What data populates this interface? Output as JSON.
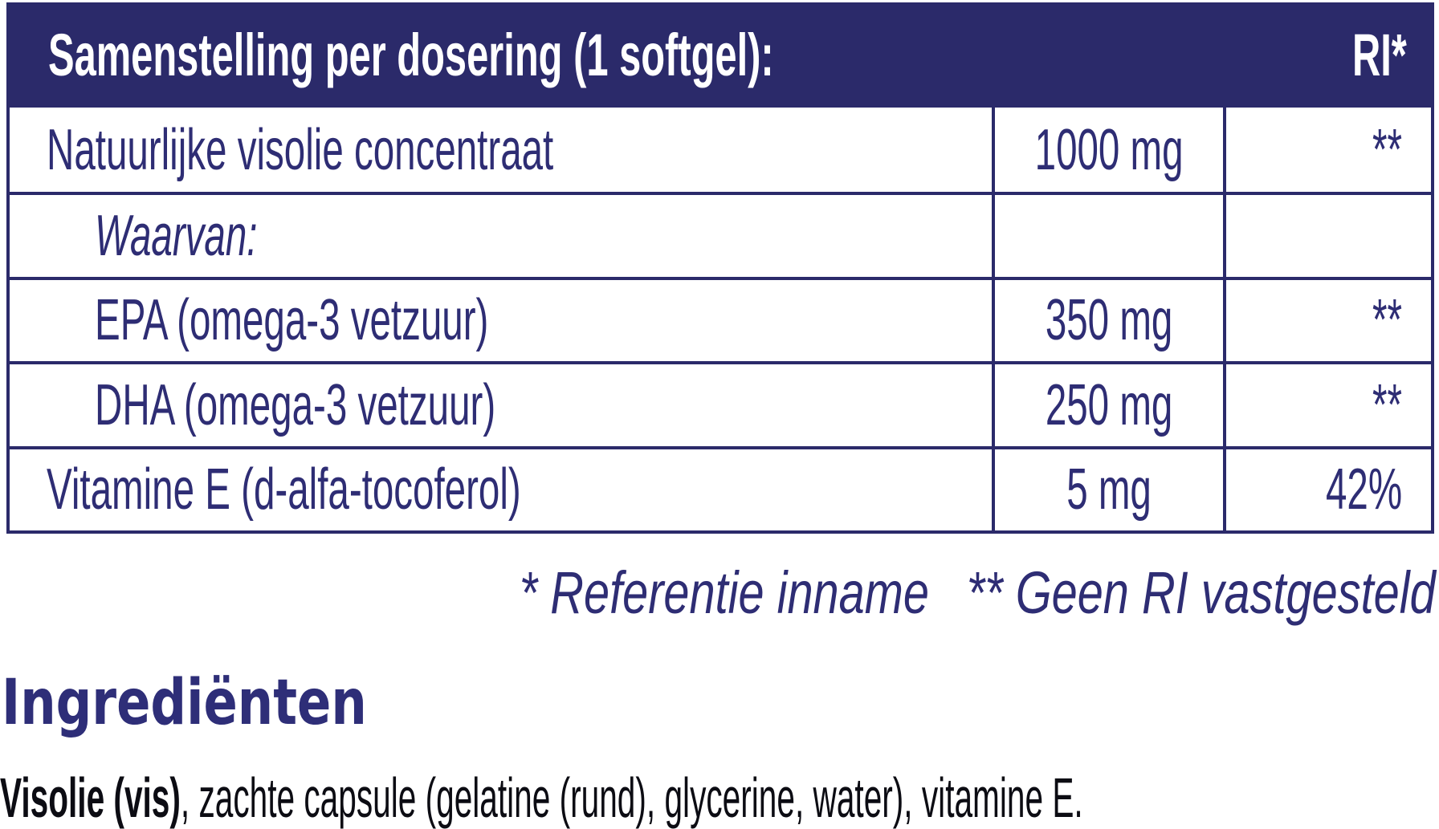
{
  "colors": {
    "navy_band": "#2b2a6a",
    "navy_text": "#2e2d74",
    "heading_blue": "#2e2e78",
    "body_black": "#0c0c13",
    "background": "#ffffff"
  },
  "table": {
    "header": {
      "title": "Samenstelling per dosering (1 softgel):",
      "ri_label": "RI*"
    },
    "columns": [
      "ingredient",
      "amount",
      "ri"
    ],
    "rows": [
      {
        "name": "Natuurlijke visolie concentraat",
        "amount": "1000 mg",
        "ri": "**"
      },
      {
        "name": "Waarvan:",
        "amount": "",
        "ri": ""
      },
      {
        "name": "EPA (omega-3 vetzuur)",
        "amount": "350 mg",
        "ri": "**"
      },
      {
        "name": "DHA (omega-3 vetzuur)",
        "amount": "250 mg",
        "ri": "**"
      },
      {
        "name": "Vitamine E (d-alfa-tocoferol)",
        "amount": "5 mg",
        "ri": "42%"
      }
    ],
    "footnotes": {
      "reference": "* Referentie inname",
      "no_ri": "** Geen RI vastgesteld"
    }
  },
  "ingredients": {
    "heading": "Ingrediënten",
    "lead_bold": "Visolie (vis)",
    "rest": ", zachte capsule (gelatine (rund), glycerine, water), vitamine E."
  }
}
